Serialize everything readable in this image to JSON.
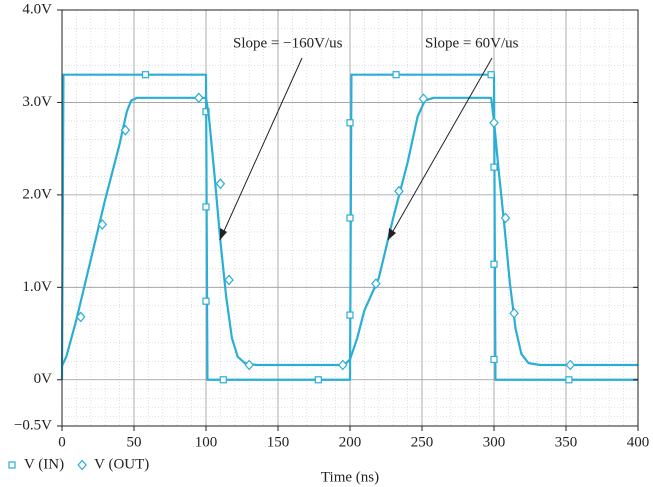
{
  "chart_data": {
    "type": "line",
    "x_label": "Time (ns)",
    "xlim": [
      0,
      400
    ],
    "xticks": [
      0,
      50,
      100,
      150,
      200,
      250,
      300,
      350,
      400
    ],
    "ylim": [
      -0.5,
      4
    ],
    "yticks": [
      {
        "value": 4,
        "label": "4.0V"
      },
      {
        "value": 3,
        "label": "3.0V"
      },
      {
        "value": 2,
        "label": "2.0V"
      },
      {
        "value": 1,
        "label": "1.0V"
      },
      {
        "value": 0,
        "label": "0V"
      },
      {
        "value": -0.5,
        "label": "−0.5V"
      }
    ],
    "grid": true,
    "legend": "bottom-left",
    "series": [
      {
        "name": "V (IN)",
        "color": "#2aaed6",
        "marker": "square",
        "x": [
          0,
          1,
          100,
          101,
          200,
          201,
          300,
          301,
          400
        ],
        "values": [
          0,
          3.3,
          3.3,
          0,
          0,
          3.3,
          3.3,
          0,
          0
        ],
        "marker_x": [
          58,
          100,
          100,
          100,
          112,
          178,
          200,
          200,
          200,
          232,
          298,
          300,
          300,
          300,
          352
        ],
        "marker_values": [
          3.3,
          2.9,
          1.87,
          0.85,
          0,
          0,
          0.7,
          1.75,
          2.78,
          3.3,
          3.3,
          2.3,
          1.25,
          0.22,
          0
        ]
      },
      {
        "name": "V (OUT)",
        "color": "#2aaed6",
        "marker": "diamond",
        "x": [
          0,
          3,
          10,
          20,
          30,
          40,
          45,
          48,
          52,
          60,
          100,
          102,
          106,
          110,
          114,
          118,
          122,
          127,
          135,
          196,
          200,
          205,
          210,
          220,
          230,
          240,
          247,
          252,
          258,
          298,
          300,
          303,
          307,
          311,
          315,
          319,
          324,
          332,
          400
        ],
        "values": [
          0.15,
          0.25,
          0.65,
          1.3,
          1.95,
          2.55,
          2.9,
          3.02,
          3.05,
          3.05,
          3.05,
          2.85,
          2.2,
          1.5,
          0.9,
          0.45,
          0.25,
          0.18,
          0.16,
          0.16,
          0.22,
          0.45,
          0.75,
          1.1,
          1.75,
          2.35,
          2.85,
          3.02,
          3.05,
          3.05,
          2.8,
          2.3,
          1.7,
          1.05,
          0.55,
          0.28,
          0.18,
          0.16,
          0.16
        ],
        "marker_x": [
          13,
          28,
          44,
          95,
          110,
          116,
          130,
          195,
          218,
          234,
          251,
          300,
          308,
          314,
          353
        ],
        "marker_values": [
          0.68,
          1.68,
          2.7,
          3.05,
          2.12,
          1.08,
          0.16,
          0.16,
          1.04,
          2.04,
          3.04,
          2.78,
          1.75,
          0.72,
          0.16
        ]
      }
    ],
    "annotations": [
      "Slope = −160V/us",
      "Slope = 60V/us"
    ]
  }
}
